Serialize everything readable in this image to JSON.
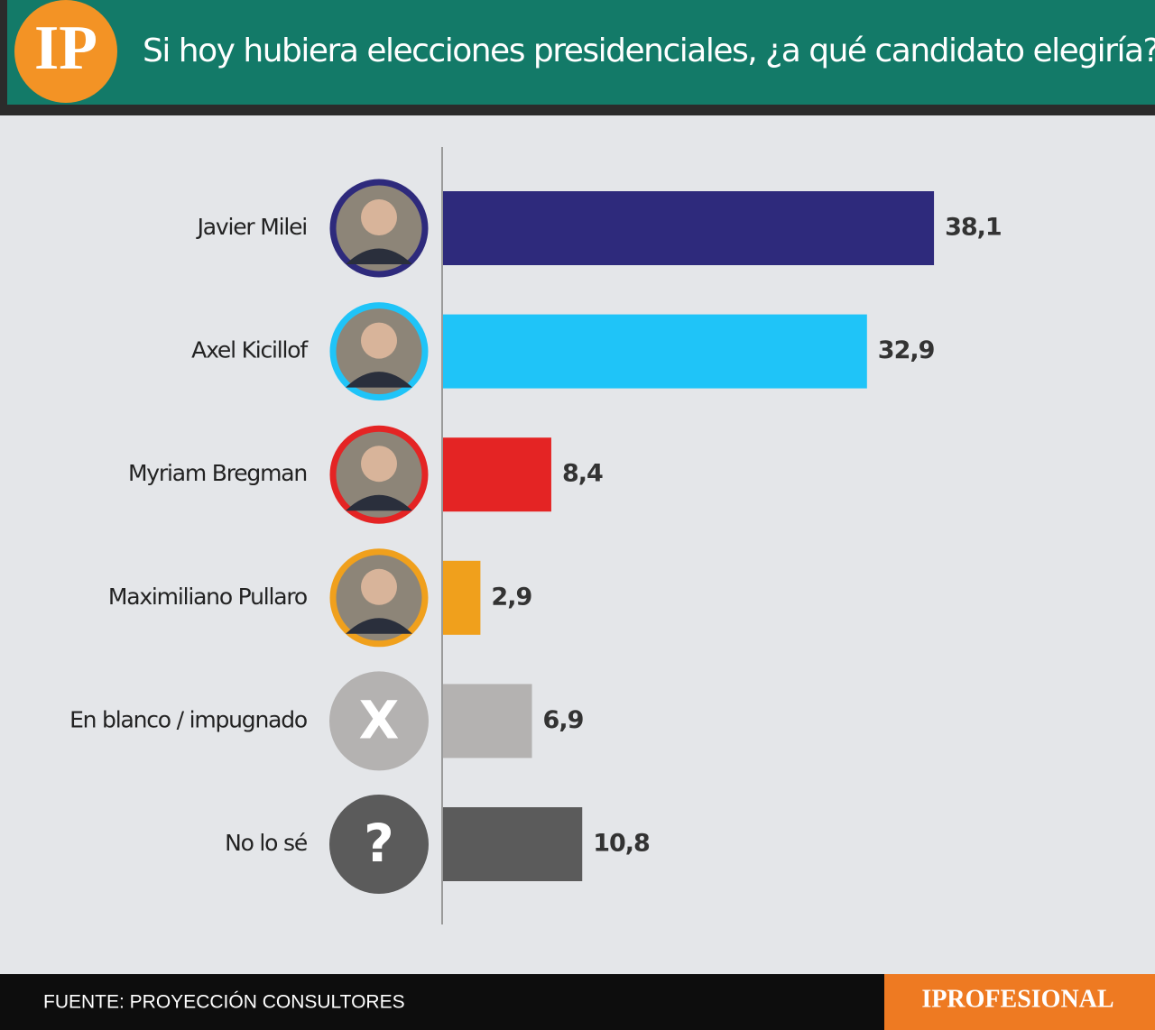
{
  "logo": "IP",
  "chart_data": {
    "type": "bar",
    "title": "Si hoy hubiera elecciones presidenciales, ¿a qué candidato elegiría?",
    "categories": [
      "Javier Milei",
      "Axel Kicillof",
      "Myriam Bregman",
      "Maximiliano Pullaro",
      "En blanco / impugnado",
      "No lo sé"
    ],
    "values": [
      38.1,
      32.9,
      8.4,
      2.9,
      6.9,
      10.8
    ],
    "value_labels": [
      "38,1",
      "32,9",
      "8,4",
      "2,9",
      "6,9",
      "10,8"
    ],
    "colors": [
      "#2e2a7c",
      "#1fc4f8",
      "#e42424",
      "#f0a01c",
      "#b4b2b1",
      "#5b5b5b"
    ],
    "avatar_symbols": [
      null,
      null,
      null,
      null,
      "X",
      "?"
    ]
  },
  "footer": {
    "source": "FUENTE: PROYECCIÓN CONSULTORES",
    "brand": "IPROFESIONAL"
  }
}
